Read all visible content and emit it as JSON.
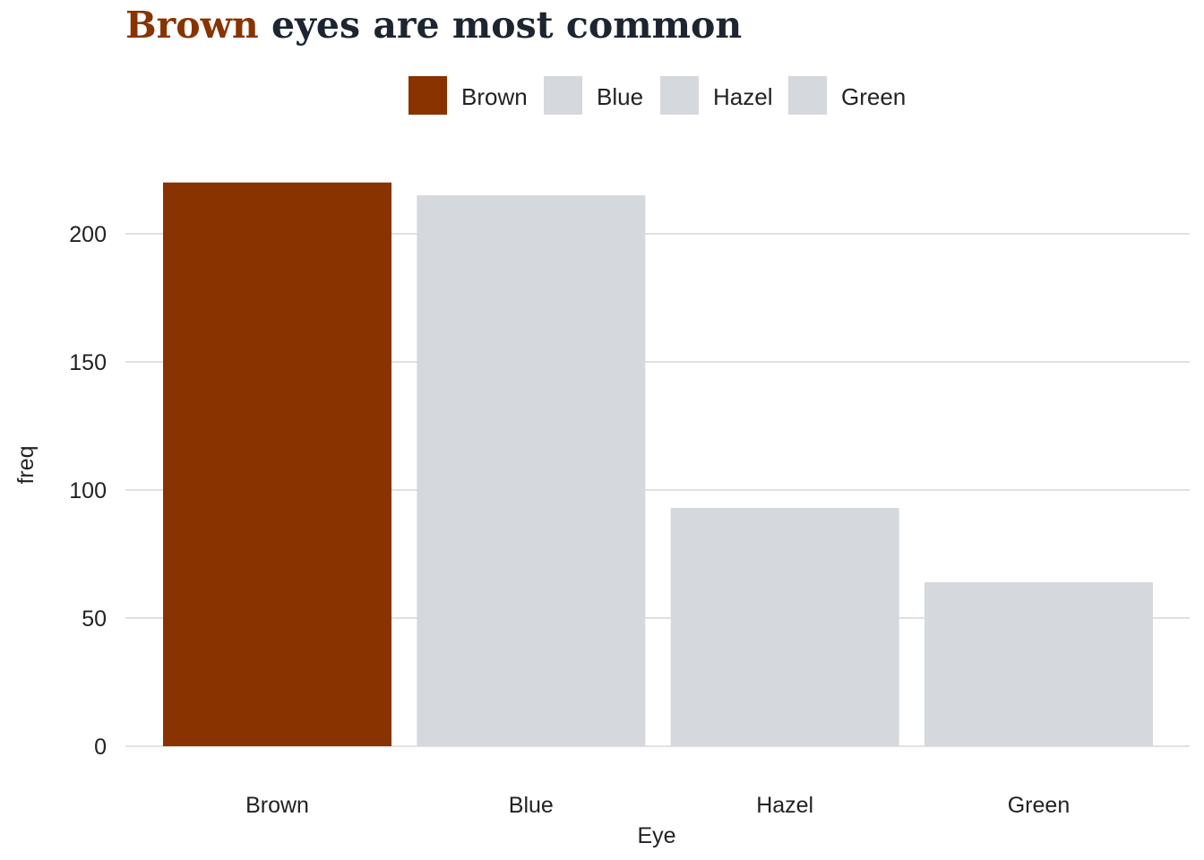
{
  "title": {
    "highlight": "Brown",
    "rest": " eyes are most common"
  },
  "colors": {
    "highlight": "#883300",
    "other": "#d5d8dc",
    "title_text": "#1c2530",
    "grid": "#d9d9d9"
  },
  "chart_data": {
    "type": "bar",
    "categories": [
      "Brown",
      "Blue",
      "Hazel",
      "Green"
    ],
    "values": [
      220,
      215,
      93,
      64
    ],
    "highlight": "Brown",
    "xlabel": "Eye",
    "ylabel": "freq",
    "ylim": [
      0,
      230
    ],
    "yticks": [
      0,
      50,
      100,
      150,
      200
    ],
    "grid": true,
    "legend": {
      "position": "top",
      "entries": [
        "Brown",
        "Blue",
        "Hazel",
        "Green"
      ]
    }
  }
}
